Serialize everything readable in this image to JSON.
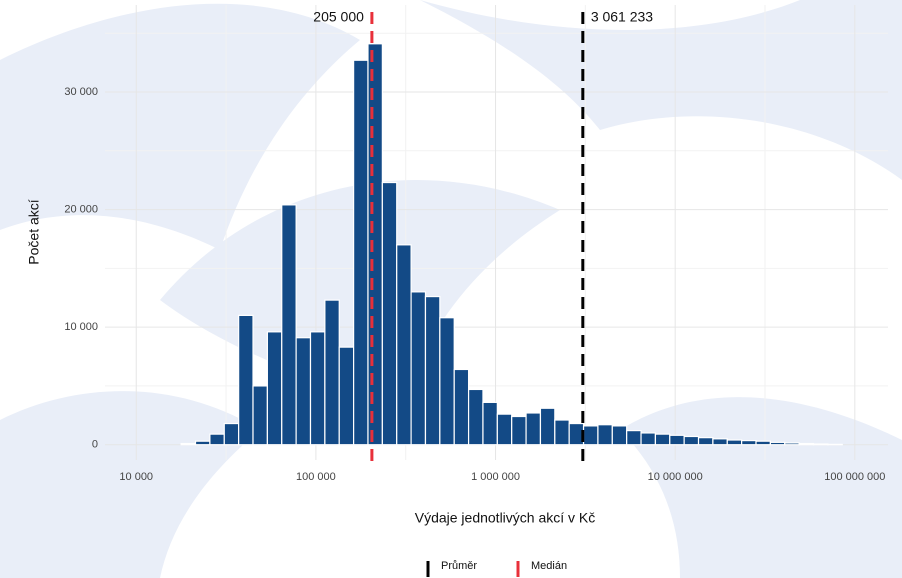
{
  "chart_data": {
    "type": "histogram",
    "x_label": "Výdaje jednotlivých akcí v Kč",
    "y_label": "Počet akcí",
    "log_x": true,
    "grid": true,
    "color": "#134a86",
    "bins": [
      17783,
      21380,
      25704,
      30903,
      37154,
      44668,
      53703,
      64565,
      77625,
      93325,
      112202,
      134896,
      162181,
      194984,
      234423,
      281838,
      338844,
      407380,
      489779,
      588844,
      707946,
      851138,
      1023293,
      1230269,
      1479108,
      1778279,
      2137962,
      2570396,
      3090295,
      3715352,
      4466836,
      5370318,
      6456542,
      7762471,
      9332543,
      11220185,
      13489629,
      16218101,
      19498446,
      23442288,
      28183829,
      33884416,
      40738028,
      48977882,
      58884366,
      70794578,
      85113804
    ],
    "values": [
      100,
      300,
      900,
      1800,
      11000,
      5000,
      9600,
      20400,
      9100,
      9600,
      12300,
      8300,
      32700,
      34100,
      22300,
      17000,
      13000,
      12600,
      10800,
      6400,
      4700,
      3600,
      2600,
      2400,
      2700,
      3100,
      2100,
      1800,
      1600,
      1700,
      1600,
      1200,
      1000,
      900,
      800,
      700,
      600,
      500,
      400,
      350,
      300,
      200,
      150,
      100,
      60,
      30
    ],
    "xlim": [
      6700,
      153000000
    ],
    "ylim": [
      -1300,
      37400
    ],
    "xticks": [
      {
        "value": 10000,
        "label": "10 000"
      },
      {
        "value": 100000,
        "label": "100 000"
      },
      {
        "value": 1000000,
        "label": "1 000 000"
      },
      {
        "value": 10000000,
        "label": "10 000 000"
      },
      {
        "value": 100000000,
        "label": "100 000 000"
      }
    ],
    "yticks": [
      0,
      {
        "value": 10000,
        "label": "10 000"
      },
      {
        "value": 20000,
        "label": "20 000"
      },
      {
        "value": 30000,
        "label": "30 000"
      }
    ],
    "x_minor_grid": [
      31623,
      316228,
      3162278,
      31622777
    ],
    "y_minor_grid": [
      5000,
      15000,
      25000,
      35000
    ],
    "reference_lines": [
      {
        "name": "Průměr",
        "value": 3061233,
        "label": "3 061 233",
        "color": "#000000"
      },
      {
        "name": "Medián",
        "value": 205000,
        "label": "205 000",
        "color": "#e8303a"
      }
    ]
  }
}
